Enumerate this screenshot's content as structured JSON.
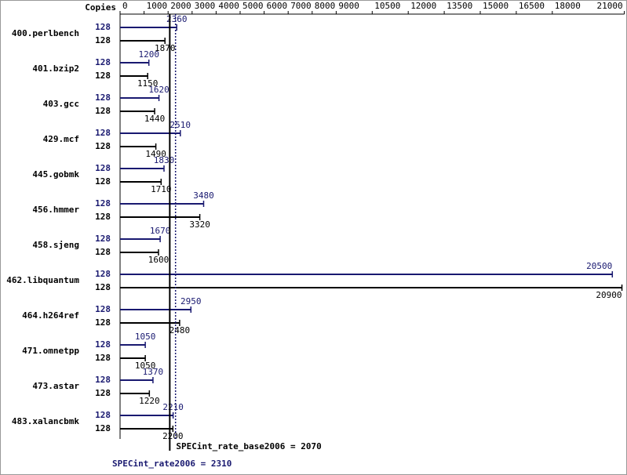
{
  "chart_data": {
    "type": "bar",
    "copies_label": "Copies",
    "categories": [
      "400.perlbench",
      "401.bzip2",
      "403.gcc",
      "429.mcf",
      "445.gobmk",
      "456.hmmer",
      "458.sjeng",
      "462.libquantum",
      "464.h264ref",
      "471.omnetpp",
      "473.astar",
      "483.xalancbmk"
    ],
    "series": [
      {
        "name": "SPECint_rate2006",
        "color": "#191970",
        "copies": [
          128,
          128,
          128,
          128,
          128,
          128,
          128,
          128,
          128,
          128,
          128,
          128
        ],
        "values": [
          2360,
          1200,
          1620,
          2510,
          1830,
          3480,
          1670,
          20500,
          2950,
          1050,
          1370,
          2210
        ]
      },
      {
        "name": "SPECint_rate_base2006",
        "color": "#000000",
        "copies": [
          128,
          128,
          128,
          128,
          128,
          128,
          128,
          128,
          128,
          128,
          128,
          128
        ],
        "values": [
          1870,
          1150,
          1440,
          1490,
          1710,
          3320,
          1600,
          20900,
          2480,
          1050,
          1220,
          2200
        ]
      }
    ],
    "summary": [
      {
        "label": "SPECint_rate_base2006 = 2070",
        "value": 2070,
        "color": "#000000"
      },
      {
        "label": "SPECint_rate2006 = 2310",
        "value": 2310,
        "color": "#191970"
      }
    ],
    "xlim": [
      0,
      21000
    ],
    "xticks": [
      0,
      1000,
      2000,
      3000,
      4000,
      5000,
      6000,
      7000,
      8000,
      9000,
      10500,
      12000,
      13500,
      15000,
      16500,
      18000,
      21000
    ]
  }
}
